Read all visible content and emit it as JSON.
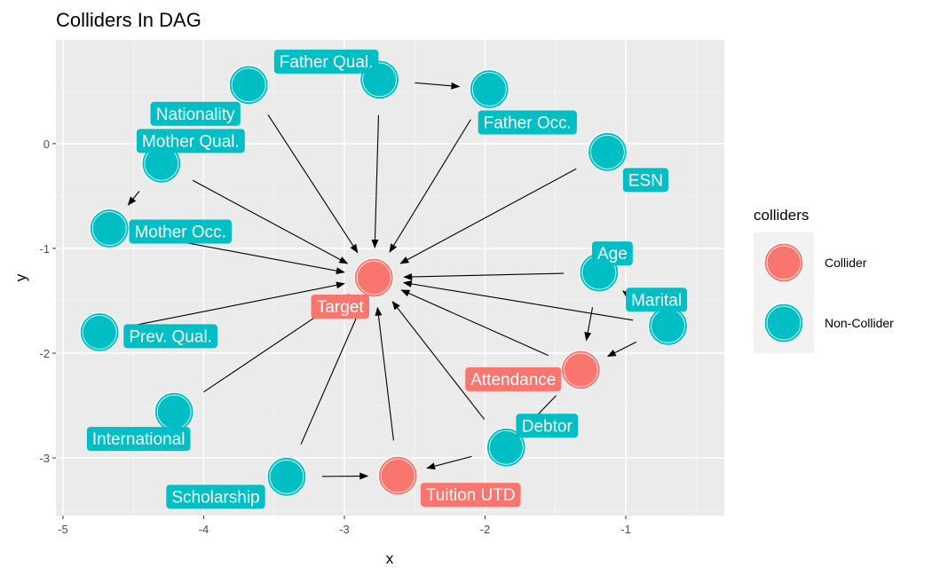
{
  "chart_data": {
    "type": "network",
    "title": "Colliders In DAG",
    "xlabel": "x",
    "ylabel": "y",
    "xlim": [
      -5.05,
      -0.3
    ],
    "ylim": [
      -3.55,
      0.99
    ],
    "x_ticks": [
      -5,
      -4,
      -3,
      -2,
      -1
    ],
    "y_ticks": [
      0,
      -1,
      -2,
      -3
    ],
    "x_tick_labels": [
      "-5",
      "-4",
      "-3",
      "-2",
      "-1"
    ],
    "y_tick_labels": [
      "0",
      "-1",
      "-2",
      "-3"
    ],
    "grid": true,
    "legend": {
      "title": "colliders",
      "position": "right",
      "entries": [
        {
          "label": "Collider",
          "color": "#F8766D"
        },
        {
          "label": "Non-Collider",
          "color": "#00BFC4"
        }
      ]
    },
    "nodes": [
      {
        "name": "Father Qual.",
        "x": -2.75,
        "y": 0.61,
        "group": "Non-Collider"
      },
      {
        "name": "Nationality",
        "x": -3.68,
        "y": 0.56,
        "group": "Non-Collider"
      },
      {
        "name": "Father Occ.",
        "x": -1.97,
        "y": 0.52,
        "group": "Non-Collider"
      },
      {
        "name": "ESN",
        "x": -1.13,
        "y": -0.08,
        "group": "Non-Collider"
      },
      {
        "name": "Mother Qual.",
        "x": -4.3,
        "y": -0.19,
        "group": "Non-Collider"
      },
      {
        "name": "Mother Occ.",
        "x": -4.67,
        "y": -0.81,
        "group": "Non-Collider"
      },
      {
        "name": "Age",
        "x": -1.19,
        "y": -1.23,
        "group": "Non-Collider"
      },
      {
        "name": "Target",
        "x": -2.79,
        "y": -1.28,
        "group": "Collider"
      },
      {
        "name": "Marital",
        "x": -0.7,
        "y": -1.74,
        "group": "Non-Collider"
      },
      {
        "name": "Prev. Qual.",
        "x": -4.74,
        "y": -1.8,
        "group": "Non-Collider"
      },
      {
        "name": "Attendance",
        "x": -1.32,
        "y": -2.16,
        "group": "Collider"
      },
      {
        "name": "International",
        "x": -4.21,
        "y": -2.56,
        "group": "Non-Collider"
      },
      {
        "name": "Debtor",
        "x": -1.85,
        "y": -2.9,
        "group": "Non-Collider"
      },
      {
        "name": "Scholarship",
        "x": -3.41,
        "y": -3.18,
        "group": "Non-Collider"
      },
      {
        "name": "Tuition UTD",
        "x": -2.62,
        "y": -3.17,
        "group": "Collider"
      }
    ],
    "edges": [
      {
        "from": "Nationality",
        "to": "Target"
      },
      {
        "from": "Father Qual.",
        "to": "Target"
      },
      {
        "from": "Father Occ.",
        "to": "Target"
      },
      {
        "from": "ESN",
        "to": "Target"
      },
      {
        "from": "Mother Qual.",
        "to": "Target"
      },
      {
        "from": "Mother Occ.",
        "to": "Target"
      },
      {
        "from": "Prev. Qual.",
        "to": "Target"
      },
      {
        "from": "International",
        "to": "Target"
      },
      {
        "from": "Scholarship",
        "to": "Target"
      },
      {
        "from": "Tuition UTD",
        "to": "Target"
      },
      {
        "from": "Debtor",
        "to": "Target"
      },
      {
        "from": "Attendance",
        "to": "Target"
      },
      {
        "from": "Age",
        "to": "Target"
      },
      {
        "from": "Marital",
        "to": "Target"
      },
      {
        "from": "Father Qual.",
        "to": "Father Occ."
      },
      {
        "from": "Mother Qual.",
        "to": "Mother Occ."
      },
      {
        "from": "Age",
        "to": "Attendance"
      },
      {
        "from": "Marital",
        "to": "Attendance"
      },
      {
        "from": "Marital",
        "to": "Age"
      },
      {
        "from": "Attendance",
        "to": "Debtor"
      },
      {
        "from": "Debtor",
        "to": "Tuition UTD"
      },
      {
        "from": "Scholarship",
        "to": "Tuition UTD"
      }
    ]
  }
}
